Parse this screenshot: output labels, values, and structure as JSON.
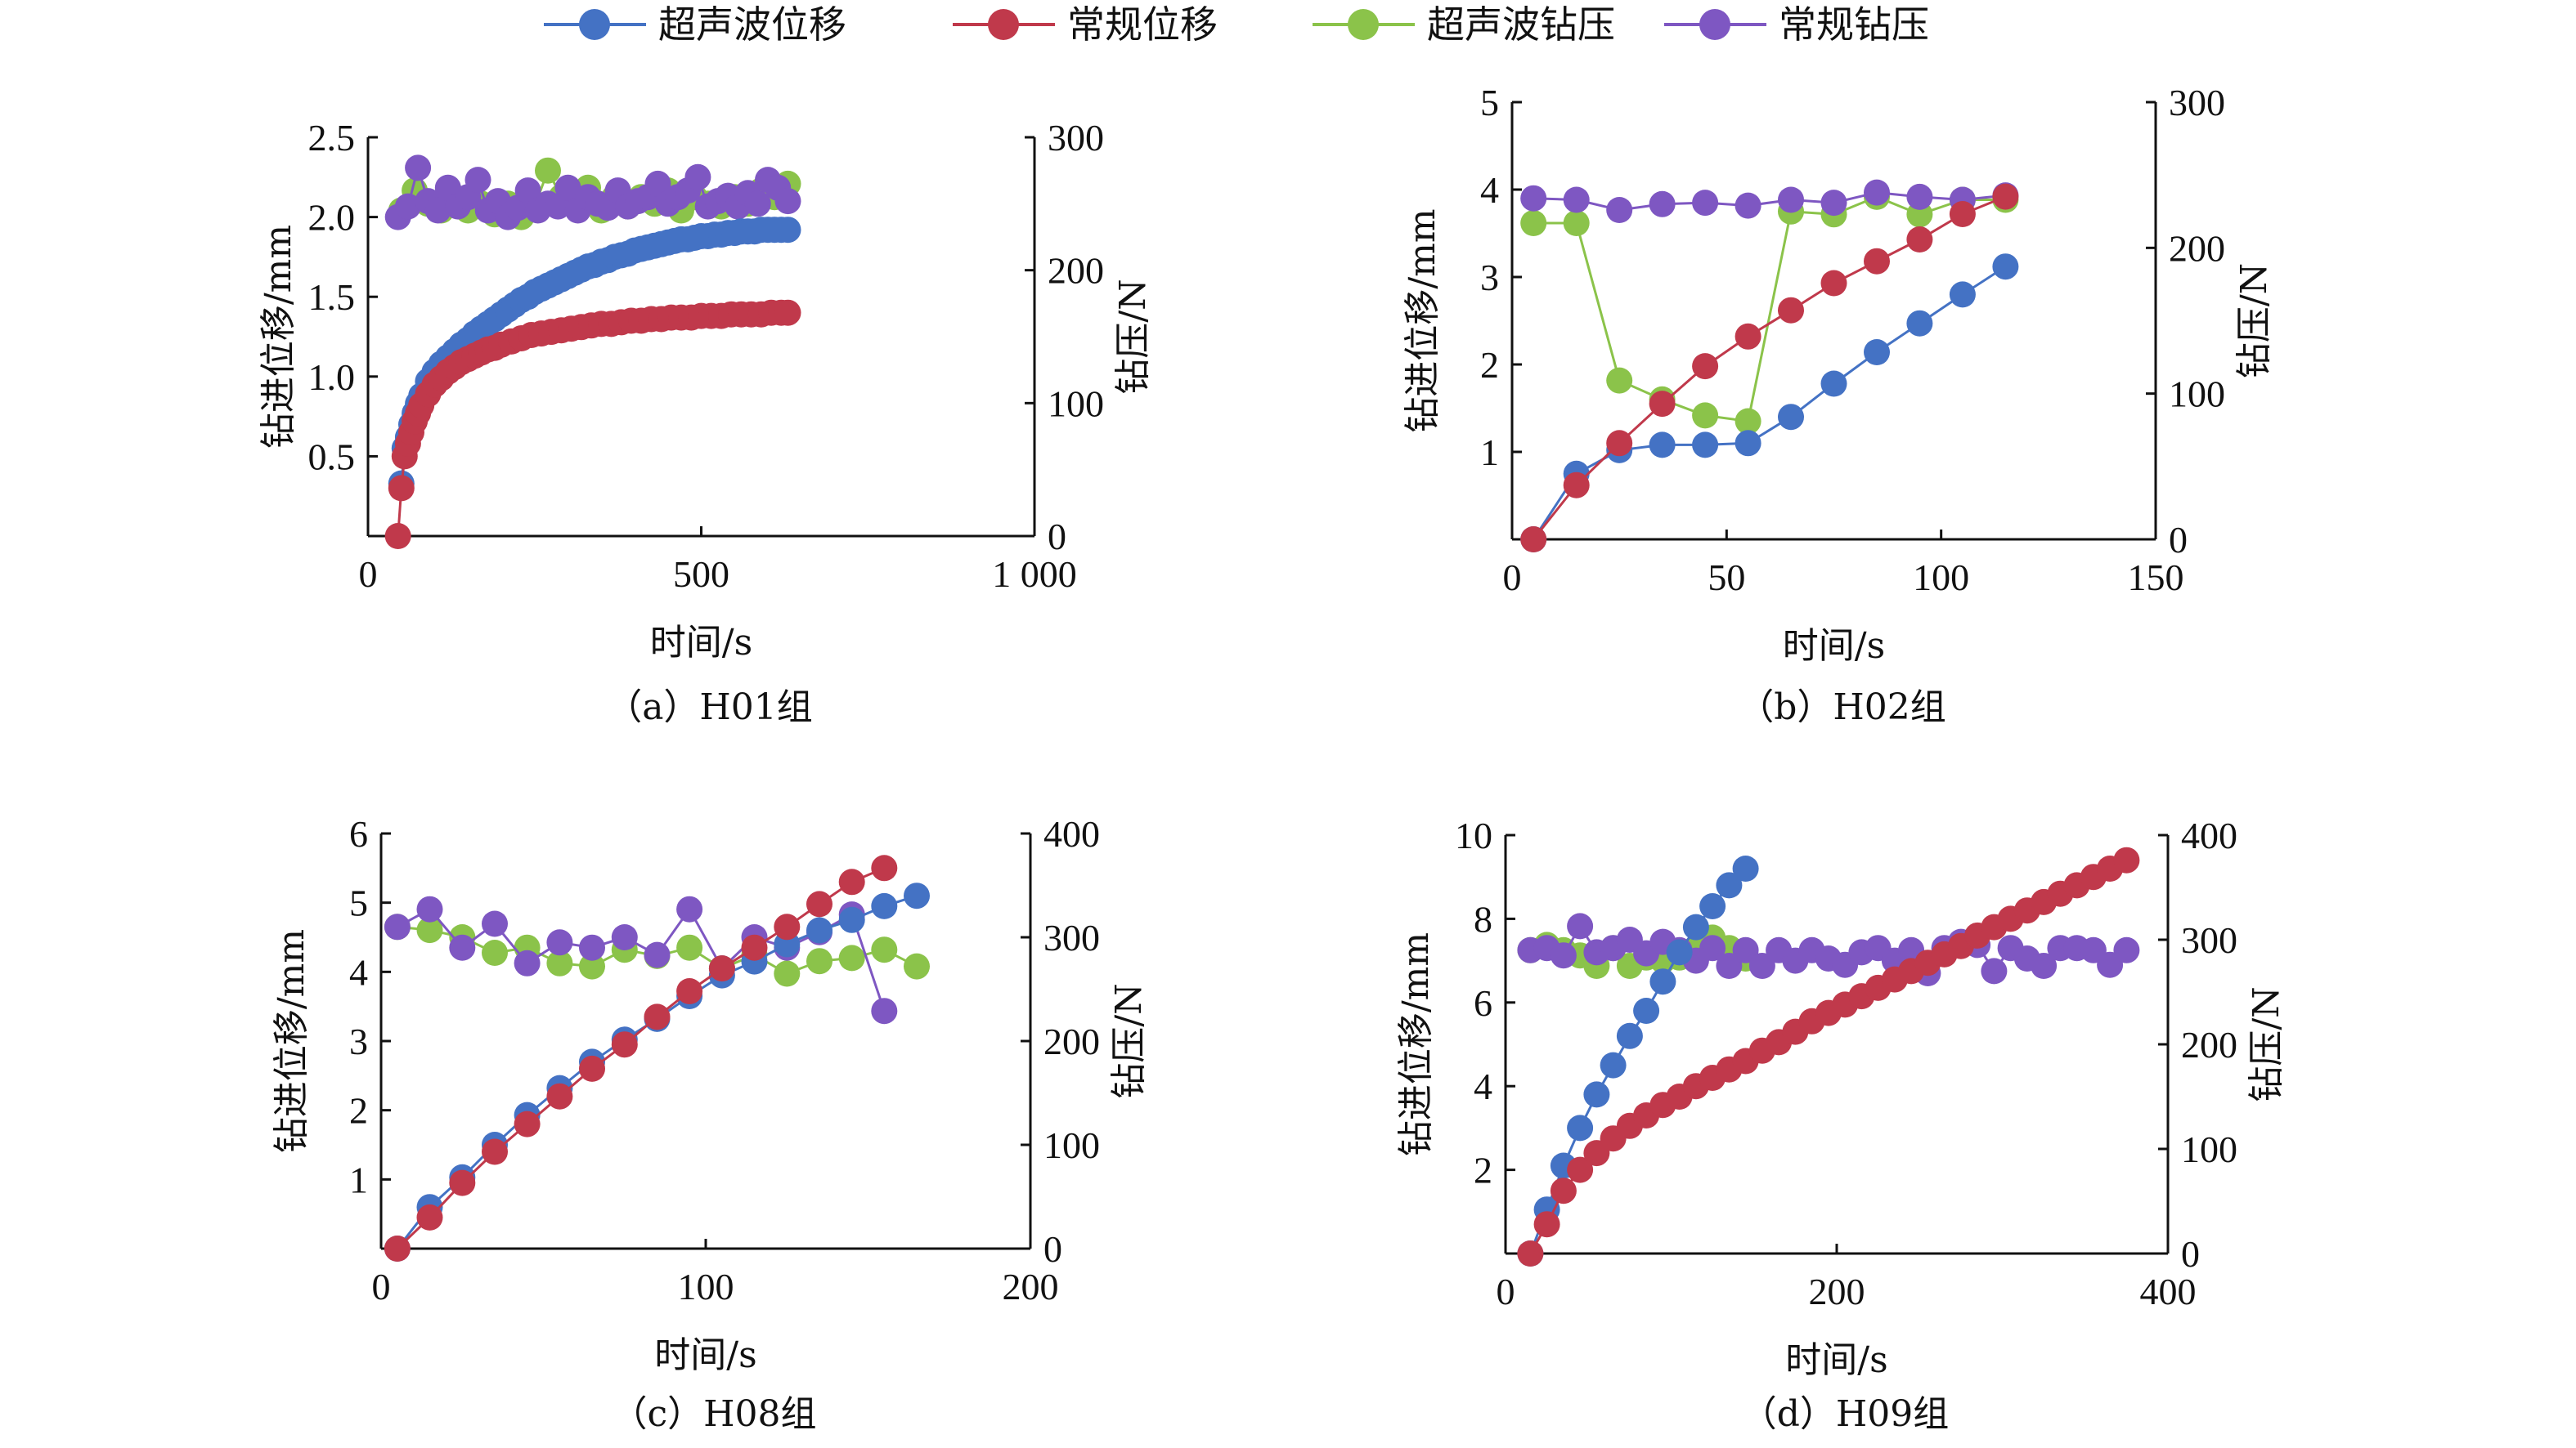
{
  "legend": {
    "items": [
      {
        "label": "超声波位移",
        "color": "#4472C4"
      },
      {
        "label": "常规位移",
        "color": "#C0394B"
      },
      {
        "label": "超声波钻压",
        "color": "#8BC34A"
      },
      {
        "label": "常规钻压",
        "color": "#7E57C2"
      }
    ]
  },
  "chart_data": [
    {
      "type": "line",
      "caption": "（a）H01组",
      "xlabel": "时间/s",
      "ylabel": "钻进位移/mm",
      "y2label": "钻压/N",
      "xlim": [
        0,
        1000
      ],
      "xticks": [
        0,
        500,
        1000
      ],
      "xtick_labels": [
        "0",
        "500",
        "1 000"
      ],
      "ylim": [
        0,
        2.5
      ],
      "yticks": [
        0,
        0.5,
        1.0,
        1.5,
        2.0,
        2.5
      ],
      "ytick_labels": [
        "",
        "0.5",
        "1.0",
        "1.5",
        "2.0",
        "2.5"
      ],
      "y2lim": [
        0,
        300
      ],
      "y2ticks": [
        0,
        100,
        200,
        300
      ],
      "series": [
        {
          "name": "超声波位移",
          "axis": "left",
          "color": "#4472C4",
          "x": [
            50,
            55,
            60,
            65,
            70,
            75,
            80,
            90,
            100,
            110,
            120,
            130,
            140,
            150,
            160,
            170,
            180,
            190,
            200,
            210,
            220,
            230,
            240,
            250,
            260,
            270,
            280,
            290,
            300,
            310,
            320,
            330,
            340,
            350,
            360,
            370,
            380,
            390,
            400,
            410,
            420,
            430,
            440,
            450,
            460,
            470,
            480,
            490,
            500,
            510,
            520,
            530,
            540,
            550,
            560,
            570,
            580,
            590,
            600,
            610,
            620,
            630
          ],
          "y": [
            0.33,
            0.55,
            0.62,
            0.7,
            0.77,
            0.83,
            0.88,
            0.97,
            1.03,
            1.08,
            1.12,
            1.16,
            1.2,
            1.23,
            1.27,
            1.3,
            1.33,
            1.36,
            1.39,
            1.42,
            1.45,
            1.48,
            1.5,
            1.53,
            1.55,
            1.57,
            1.59,
            1.61,
            1.63,
            1.65,
            1.67,
            1.69,
            1.7,
            1.72,
            1.73,
            1.75,
            1.76,
            1.77,
            1.79,
            1.8,
            1.81,
            1.82,
            1.83,
            1.84,
            1.85,
            1.86,
            1.86,
            1.87,
            1.88,
            1.88,
            1.89,
            1.89,
            1.9,
            1.9,
            1.91,
            1.91,
            1.91,
            1.92,
            1.92,
            1.92,
            1.92,
            1.92
          ]
        },
        {
          "name": "常规位移",
          "axis": "left",
          "color": "#C0394B",
          "x": [
            45,
            50,
            55,
            60,
            65,
            70,
            75,
            80,
            90,
            100,
            110,
            120,
            130,
            140,
            150,
            160,
            170,
            180,
            190,
            200,
            215,
            230,
            245,
            260,
            275,
            290,
            305,
            320,
            335,
            350,
            365,
            380,
            395,
            410,
            425,
            440,
            455,
            470,
            485,
            500,
            515,
            530,
            545,
            560,
            575,
            590,
            605,
            620,
            630
          ],
          "y": [
            0.0,
            0.3,
            0.5,
            0.58,
            0.65,
            0.72,
            0.77,
            0.82,
            0.89,
            0.95,
            0.99,
            1.03,
            1.06,
            1.09,
            1.11,
            1.13,
            1.15,
            1.17,
            1.18,
            1.2,
            1.22,
            1.24,
            1.26,
            1.27,
            1.28,
            1.29,
            1.3,
            1.31,
            1.32,
            1.33,
            1.33,
            1.34,
            1.35,
            1.35,
            1.36,
            1.36,
            1.37,
            1.37,
            1.37,
            1.38,
            1.38,
            1.38,
            1.39,
            1.39,
            1.39,
            1.39,
            1.4,
            1.4,
            1.4
          ]
        },
        {
          "name": "超声波钻压",
          "axis": "right",
          "color": "#8BC34A",
          "x": [
            50,
            70,
            90,
            110,
            130,
            150,
            170,
            190,
            210,
            230,
            250,
            270,
            290,
            310,
            330,
            350,
            370,
            390,
            410,
            430,
            450,
            470,
            490,
            510,
            530,
            550,
            570,
            590,
            610,
            630
          ],
          "y": [
            245,
            260,
            250,
            245,
            255,
            245,
            250,
            242,
            250,
            240,
            248,
            275,
            255,
            250,
            262,
            245,
            255,
            248,
            255,
            250,
            260,
            245,
            255,
            250,
            248,
            255,
            250,
            260,
            255,
            265
          ]
        },
        {
          "name": "常规钻压",
          "axis": "right",
          "color": "#7E57C2",
          "x": [
            45,
            60,
            75,
            90,
            105,
            120,
            135,
            150,
            165,
            180,
            195,
            210,
            225,
            240,
            255,
            270,
            285,
            300,
            315,
            330,
            345,
            360,
            375,
            390,
            405,
            420,
            435,
            450,
            465,
            480,
            495,
            510,
            525,
            540,
            555,
            570,
            585,
            600,
            615,
            630
          ],
          "y": [
            240,
            248,
            277,
            252,
            245,
            262,
            248,
            255,
            268,
            245,
            252,
            240,
            247,
            260,
            245,
            250,
            248,
            262,
            245,
            255,
            250,
            247,
            260,
            248,
            252,
            255,
            265,
            250,
            255,
            260,
            270,
            248,
            252,
            256,
            248,
            258,
            250,
            268,
            262,
            252
          ]
        }
      ]
    },
    {
      "type": "line",
      "caption": "（b）H02组",
      "xlabel": "时间/s",
      "ylabel": "钻进位移/mm",
      "y2label": "钻压/N",
      "xlim": [
        0,
        150
      ],
      "xticks": [
        0,
        50,
        100,
        150
      ],
      "xtick_labels": [
        "0",
        "50",
        "100",
        "150"
      ],
      "ylim": [
        0,
        5
      ],
      "yticks": [
        0,
        1,
        2,
        3,
        4,
        5
      ],
      "ytick_labels": [
        "",
        "1",
        "2",
        "3",
        "4",
        "5"
      ],
      "y2lim": [
        0,
        300
      ],
      "y2ticks": [
        0,
        100,
        200,
        300
      ],
      "series": [
        {
          "name": "超声波位移",
          "axis": "left",
          "color": "#4472C4",
          "x": [
            5,
            15,
            25,
            35,
            45,
            55,
            65,
            75,
            85,
            95,
            105,
            115
          ],
          "y": [
            0.0,
            0.75,
            1.02,
            1.08,
            1.08,
            1.1,
            1.4,
            1.78,
            2.14,
            2.47,
            2.8,
            3.12
          ]
        },
        {
          "name": "常规位移",
          "axis": "left",
          "color": "#C0394B",
          "x": [
            5,
            15,
            25,
            35,
            45,
            55,
            65,
            75,
            85,
            95,
            105,
            115
          ],
          "y": [
            0.0,
            0.62,
            1.1,
            1.55,
            1.98,
            2.32,
            2.62,
            2.93,
            3.18,
            3.43,
            3.72,
            3.92
          ]
        },
        {
          "name": "超声波钻压",
          "axis": "right",
          "color": "#8BC34A",
          "x": [
            5,
            15,
            25,
            35,
            45,
            55,
            65,
            75,
            85,
            95,
            105,
            115
          ],
          "y": [
            217,
            217,
            109,
            96,
            85,
            81,
            225,
            223,
            235,
            223,
            233,
            233
          ]
        },
        {
          "name": "常规钻压",
          "axis": "right",
          "color": "#7E57C2",
          "x": [
            5,
            15,
            25,
            35,
            45,
            55,
            65,
            75,
            85,
            95,
            105,
            115
          ],
          "y": [
            234,
            233,
            226,
            230,
            231,
            229,
            233,
            231,
            238,
            235,
            233,
            236
          ]
        }
      ]
    },
    {
      "type": "line",
      "caption": "（c）H08组",
      "xlabel": "时间/s",
      "ylabel": "钻进位移/mm",
      "y2label": "钻压/N",
      "xlim": [
        0,
        200
      ],
      "xticks": [
        0,
        100,
        200
      ],
      "xtick_labels": [
        "0",
        "100",
        "200"
      ],
      "ylim": [
        0,
        6
      ],
      "yticks": [
        0,
        1,
        2,
        3,
        4,
        5,
        6
      ],
      "ytick_labels": [
        "",
        "1",
        "2",
        "3",
        "4",
        "5",
        "6"
      ],
      "y2lim": [
        0,
        400
      ],
      "y2ticks": [
        0,
        100,
        200,
        300,
        400
      ],
      "series": [
        {
          "name": "超声波位移",
          "axis": "left",
          "color": "#4472C4",
          "x": [
            5,
            15,
            25,
            35,
            45,
            55,
            65,
            75,
            85,
            95,
            105,
            115,
            125,
            135,
            145,
            155,
            165
          ],
          "y": [
            0.0,
            0.6,
            1.03,
            1.5,
            1.93,
            2.32,
            2.7,
            3.02,
            3.32,
            3.65,
            3.95,
            4.15,
            4.4,
            4.6,
            4.75,
            4.95,
            5.1
          ]
        },
        {
          "name": "常规位移",
          "axis": "left",
          "color": "#C0394B",
          "x": [
            5,
            15,
            25,
            35,
            45,
            55,
            65,
            75,
            85,
            95,
            105,
            115,
            125,
            135,
            145,
            155
          ],
          "y": [
            0.0,
            0.45,
            0.95,
            1.4,
            1.8,
            2.2,
            2.6,
            2.95,
            3.35,
            3.72,
            4.05,
            4.35,
            4.65,
            4.98,
            5.3,
            5.5
          ]
        },
        {
          "name": "超声波钻压",
          "axis": "right",
          "color": "#8BC34A",
          "x": [
            5,
            15,
            25,
            35,
            45,
            55,
            65,
            75,
            85,
            95,
            105,
            115,
            125,
            135,
            145,
            155,
            165
          ],
          "y": [
            310,
            307,
            300,
            285,
            290,
            275,
            272,
            288,
            282,
            290,
            270,
            283,
            265,
            277,
            280,
            288,
            272
          ]
        },
        {
          "name": "常规钻压",
          "axis": "right",
          "color": "#7E57C2",
          "x": [
            5,
            15,
            25,
            35,
            45,
            55,
            65,
            75,
            85,
            95,
            105,
            115,
            125,
            135,
            145,
            155
          ],
          "y": [
            310,
            327,
            290,
            313,
            275,
            295,
            290,
            300,
            283,
            327,
            270,
            300,
            290,
            305,
            322,
            229
          ]
        }
      ]
    },
    {
      "type": "line",
      "caption": "（d）H09组",
      "xlabel": "时间/s",
      "ylabel": "钻进位移/mm",
      "y2label": "钻压/N",
      "xlim": [
        0,
        400
      ],
      "xticks": [
        0,
        200,
        400
      ],
      "xtick_labels": [
        "0",
        "200",
        "400"
      ],
      "ylim": [
        0,
        10
      ],
      "yticks": [
        0,
        2,
        4,
        6,
        8,
        10
      ],
      "ytick_labels": [
        "",
        "2",
        "4",
        "6",
        "8",
        "10"
      ],
      "y2lim": [
        0,
        400
      ],
      "y2ticks": [
        0,
        100,
        200,
        300,
        400
      ],
      "series": [
        {
          "name": "超声波位移",
          "axis": "left",
          "color": "#4472C4",
          "x": [
            15,
            25,
            35,
            45,
            55,
            65,
            75,
            85,
            95,
            105,
            115,
            125,
            135,
            145
          ],
          "y": [
            0.0,
            1.05,
            2.1,
            3.0,
            3.8,
            4.5,
            5.2,
            5.8,
            6.5,
            7.2,
            7.8,
            8.3,
            8.8,
            9.2
          ]
        },
        {
          "name": "常规位移",
          "axis": "left",
          "color": "#C0394B",
          "x": [
            15,
            25,
            35,
            45,
            55,
            65,
            75,
            85,
            95,
            105,
            115,
            125,
            135,
            145,
            155,
            165,
            175,
            185,
            195,
            205,
            215,
            225,
            235,
            245,
            255,
            265,
            275,
            285,
            295,
            305,
            315,
            325,
            335,
            345,
            355,
            365,
            375
          ],
          "y": [
            0.0,
            0.7,
            1.5,
            2.0,
            2.4,
            2.75,
            3.05,
            3.3,
            3.55,
            3.75,
            4.0,
            4.2,
            4.4,
            4.6,
            4.85,
            5.05,
            5.3,
            5.55,
            5.75,
            5.95,
            6.15,
            6.35,
            6.55,
            6.75,
            6.95,
            7.15,
            7.35,
            7.6,
            7.8,
            8.0,
            8.2,
            8.4,
            8.6,
            8.8,
            9.0,
            9.2,
            9.4
          ]
        },
        {
          "name": "超声波钻压",
          "axis": "right",
          "color": "#8BC34A",
          "x": [
            15,
            25,
            35,
            45,
            55,
            65,
            75,
            85,
            95,
            105,
            115,
            125,
            135,
            145
          ],
          "y": [
            290,
            295,
            290,
            285,
            275,
            292,
            275,
            283,
            280,
            283,
            292,
            302,
            292,
            282
          ]
        },
        {
          "name": "常规钻压",
          "axis": "right",
          "color": "#7E57C2",
          "x": [
            15,
            25,
            35,
            45,
            55,
            65,
            75,
            85,
            95,
            105,
            115,
            125,
            135,
            145,
            155,
            165,
            175,
            185,
            195,
            205,
            215,
            225,
            235,
            245,
            255,
            265,
            275,
            285,
            295,
            305,
            315,
            325,
            335,
            345,
            355,
            365,
            375
          ],
          "y": [
            290,
            292,
            285,
            313,
            288,
            292,
            300,
            287,
            298,
            290,
            280,
            292,
            275,
            290,
            275,
            290,
            280,
            290,
            282,
            276,
            288,
            292,
            280,
            290,
            268,
            292,
            298,
            295,
            270,
            292,
            282,
            275,
            292,
            292,
            290,
            276,
            290
          ]
        }
      ]
    }
  ]
}
